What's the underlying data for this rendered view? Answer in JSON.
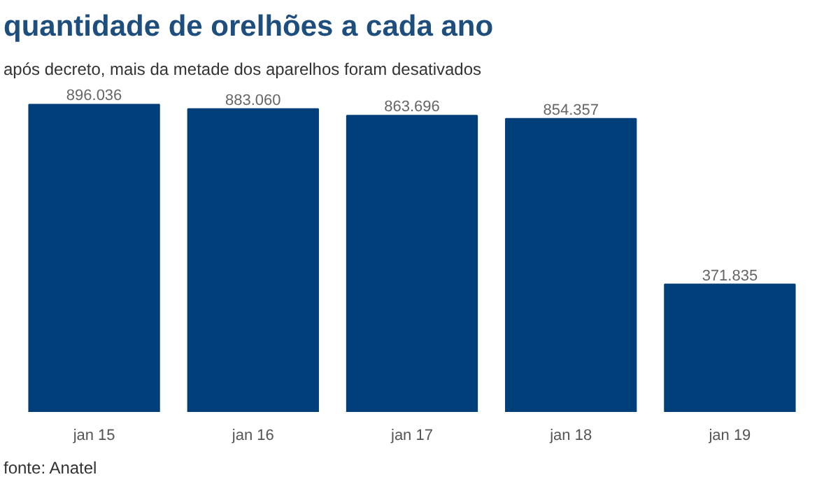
{
  "chart_data": {
    "type": "bar",
    "title": "quantidade de orelhões a cada ano",
    "subtitle": "após decreto, mais da metade dos aparelhos foram desativados",
    "categories": [
      "jan 15",
      "jan 16",
      "jan 17",
      "jan 18",
      "jan 19"
    ],
    "values": [
      896036,
      883060,
      863696,
      854357,
      371835
    ],
    "value_labels": [
      "896.036",
      "883.060",
      "863.696",
      "854.357",
      "371.835"
    ],
    "color": "#003f7a",
    "grid": false,
    "annotations": [
      "fonte: Anatel"
    ]
  }
}
